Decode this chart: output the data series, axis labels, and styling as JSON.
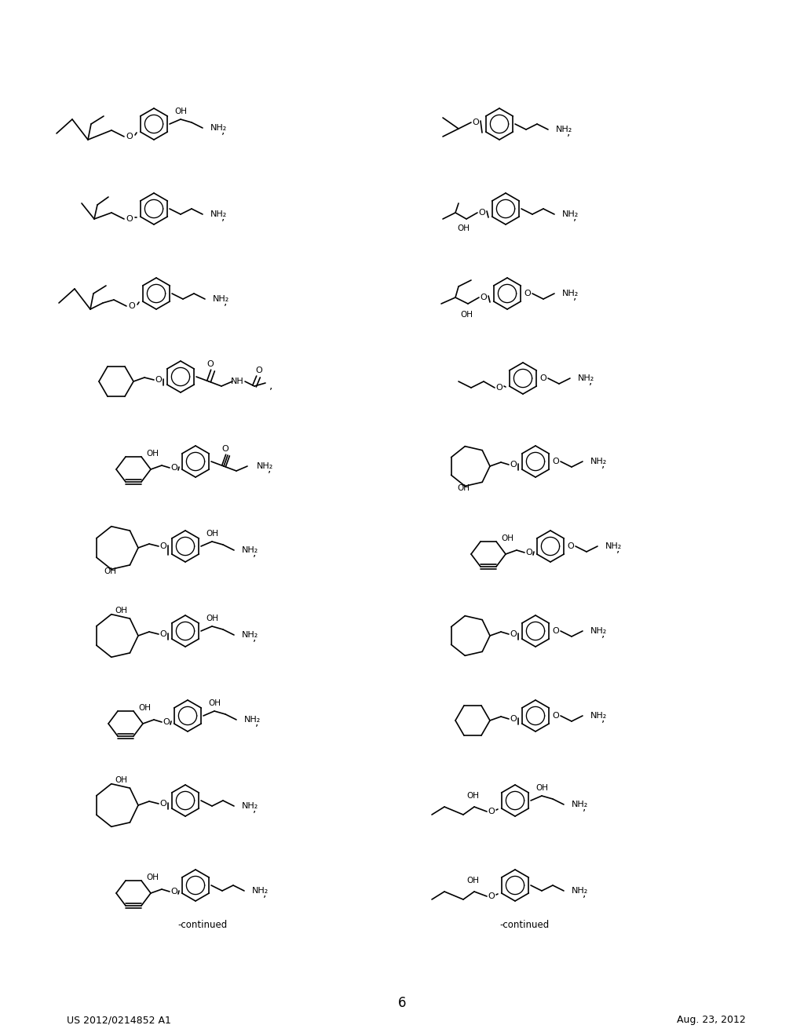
{
  "page_number": "6",
  "patent_number": "US 2012/0214852 A1",
  "patent_date": "Aug. 23, 2012",
  "background_color": "#ffffff",
  "text_color": "#000000",
  "line_color": "#000000",
  "continued_label": "-continued"
}
